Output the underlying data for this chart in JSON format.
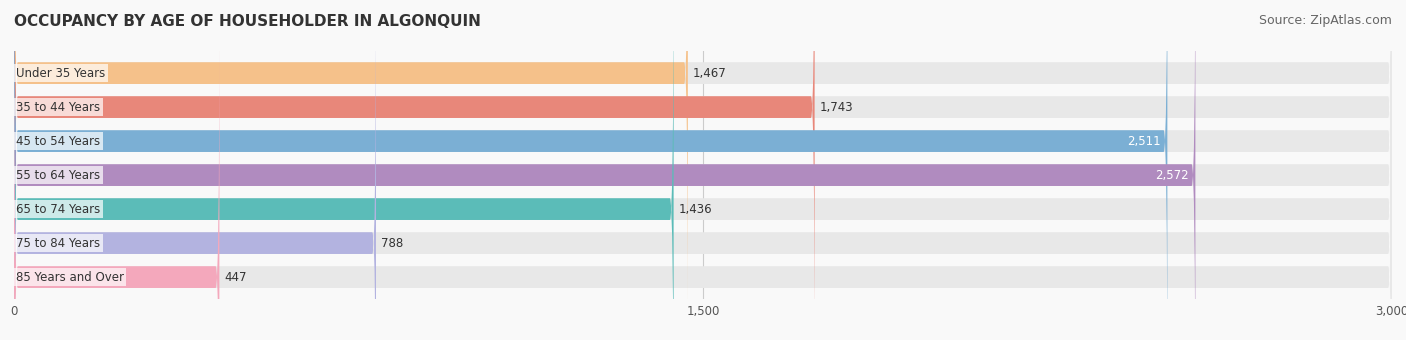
{
  "title": "OCCUPANCY BY AGE OF HOUSEHOLDER IN ALGONQUIN",
  "source": "Source: ZipAtlas.com",
  "categories": [
    "Under 35 Years",
    "35 to 44 Years",
    "45 to 54 Years",
    "55 to 64 Years",
    "65 to 74 Years",
    "75 to 84 Years",
    "85 Years and Over"
  ],
  "values": [
    1467,
    1743,
    2511,
    2572,
    1436,
    788,
    447
  ],
  "bar_colors": [
    "#f5c18a",
    "#e8877a",
    "#7bafd4",
    "#b08bbf",
    "#5bbcb8",
    "#b3b3e0",
    "#f4a8bc"
  ],
  "bar_background": "#eeeeee",
  "xlim": [
    0,
    3000
  ],
  "xticks": [
    0,
    1500,
    3000
  ],
  "xtick_labels": [
    "0",
    "1,500",
    "3,000"
  ],
  "title_fontsize": 11,
  "source_fontsize": 9,
  "label_fontsize": 8.5,
  "value_fontsize": 8.5,
  "tick_fontsize": 8.5,
  "background_color": "#f9f9f9",
  "bar_bg_color": "#e8e8e8"
}
